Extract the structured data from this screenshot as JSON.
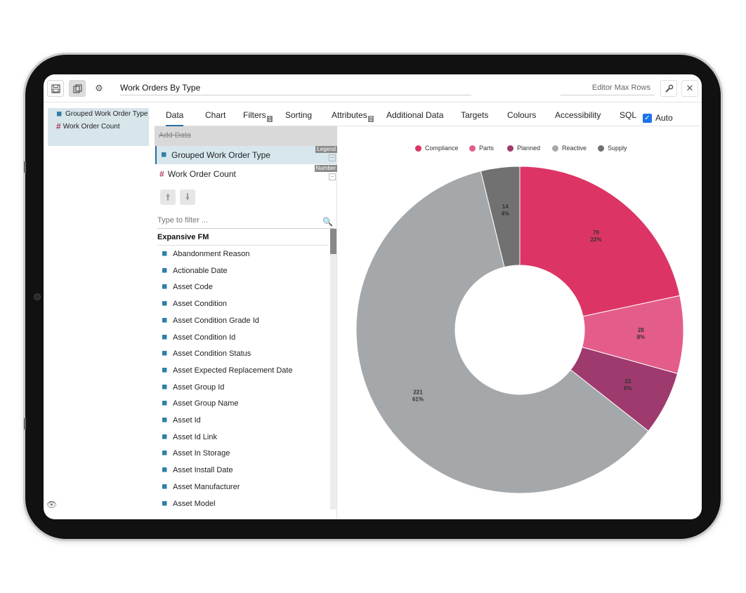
{
  "toolbar": {
    "title": "Work Orders By Type",
    "editor_max_rows_placeholder": "Editor Max Rows"
  },
  "left_pane": {
    "items": [
      {
        "label": "Grouped Work Order Type"
      },
      {
        "label": "Work Order Count"
      }
    ]
  },
  "tabs": [
    {
      "label": "Data",
      "badge": ""
    },
    {
      "label": "Chart",
      "badge": ""
    },
    {
      "label": "Filters",
      "badge": "1"
    },
    {
      "label": "Sorting",
      "badge": ""
    },
    {
      "label": "Attributes",
      "badge": "2"
    },
    {
      "label": "Additional Data",
      "badge": ""
    },
    {
      "label": "Targets",
      "badge": ""
    },
    {
      "label": "Colours",
      "badge": ""
    },
    {
      "label": "Accessibility",
      "badge": ""
    },
    {
      "label": "SQL",
      "badge": ""
    }
  ],
  "auto": {
    "label": "Auto",
    "checked": true
  },
  "data_pane": {
    "add_data": "Add Data",
    "fields": [
      {
        "label": "Grouped Work Order Type",
        "role": "Legend"
      },
      {
        "label": "Work Order Count",
        "role": "Number"
      }
    ],
    "filter_placeholder": "Type to filter ...",
    "group": "Expansive FM",
    "items": [
      "Abandonment Reason",
      "Actionable Date",
      "Asset Code",
      "Asset Condition",
      "Asset Condition Grade Id",
      "Asset Condition Id",
      "Asset Condition Status",
      "Asset Expected Replacement Date",
      "Asset Group Id",
      "Asset Group Name",
      "Asset Id",
      "Asset Id Link",
      "Asset In Storage",
      "Asset Install Date",
      "Asset Manufacturer",
      "Asset Model"
    ]
  },
  "colors": {
    "accent": "#2b6ea8",
    "Compliance": "#dc3565",
    "Parts": "#e45d8a",
    "Planned": "#9e3a6e",
    "Reactive": "#a5a8ab",
    "Supply": "#717171"
  },
  "chart_data": {
    "type": "pie",
    "donut": true,
    "legend_position": "top",
    "categories": [
      "Compliance",
      "Parts",
      "Planned",
      "Reactive",
      "Supply"
    ],
    "values": [
      79,
      28,
      23,
      221,
      14
    ],
    "percent_labels": [
      "22%",
      "8%",
      "6%",
      "61%",
      "4%"
    ]
  }
}
